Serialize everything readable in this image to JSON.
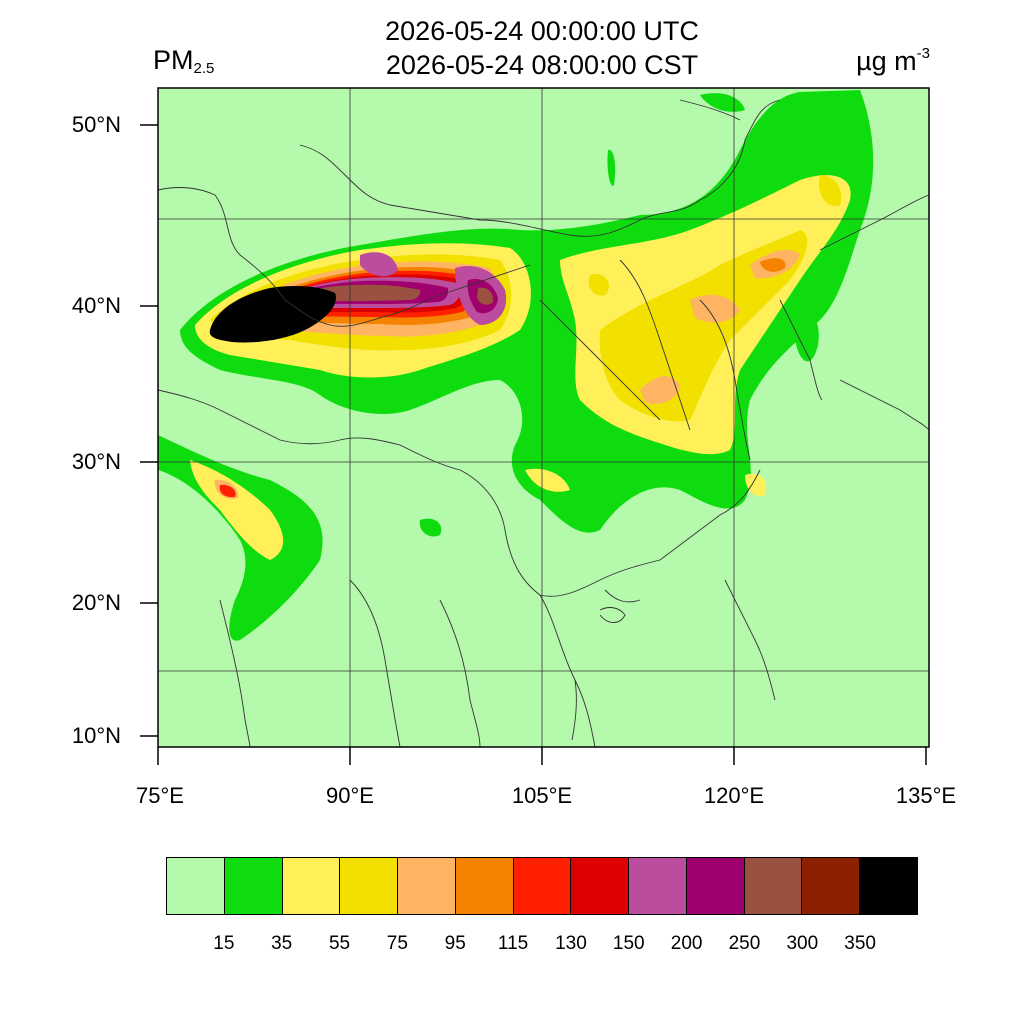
{
  "header": {
    "title_line_1": "2026-05-24 00:00:00 UTC",
    "title_line_2": "2026-05-24 08:00:00 CST",
    "variable_main": "PM",
    "variable_sub": "2.5",
    "unit_main": "µg m",
    "unit_sup": "-3"
  },
  "axes": {
    "lat_labels": [
      "50°N",
      "40°N",
      "30°N",
      "20°N",
      "10°N"
    ],
    "lon_labels": [
      "75°E",
      "90°E",
      "105°E",
      "120°E",
      "135°E"
    ]
  },
  "colors": {
    "background_level": "#b4f9ac",
    "border_lines": "#333333"
  },
  "colorbar": {
    "levels": [
      "15",
      "35",
      "55",
      "75",
      "95",
      "115",
      "130",
      "150",
      "200",
      "250",
      "300",
      "350"
    ],
    "colors": [
      "#b4f9ac",
      "#0fdc0f",
      "#fff05a",
      "#f2e100",
      "#ffb464",
      "#f58200",
      "#ff2000",
      "#dc0000",
      "#bb4c9e",
      "#a0006e",
      "#9a5140",
      "#8c2000",
      "#000000"
    ]
  }
}
